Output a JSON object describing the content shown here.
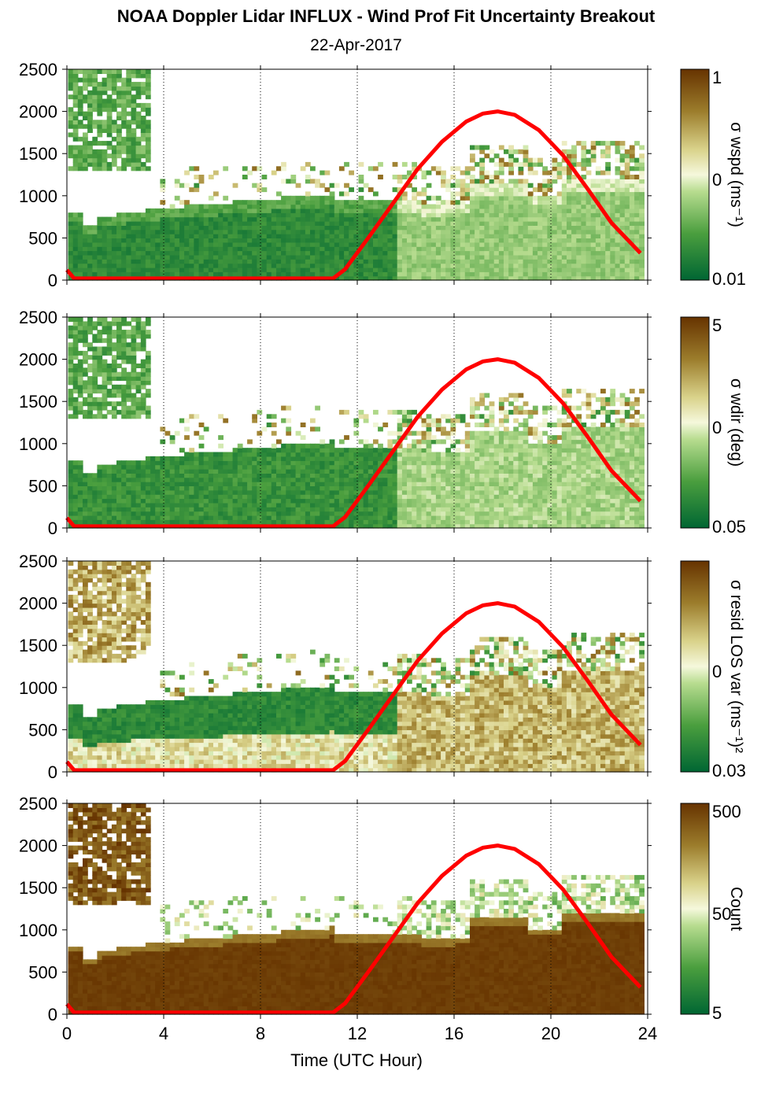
{
  "header": {
    "title": "NOAA Doppler Lidar INFLUX - Wind Prof Fit Uncertainty Breakout",
    "subtitle": "22-Apr-2017"
  },
  "colors": {
    "scale_low": "#006633",
    "scale_mid": "#f5f8dc",
    "scale_high": "#663300",
    "overlay_line": "#ff0000"
  },
  "chart_data": {
    "type": "heatmap",
    "xlabel": "Time (UTC Hour)",
    "xlim": [
      0,
      24
    ],
    "x_ticks": [
      "0",
      "4",
      "8",
      "12",
      "16",
      "20",
      "24"
    ],
    "ylim": [
      0,
      2500
    ],
    "y_ticks": [
      "0",
      "500",
      "1000",
      "1500",
      "2000",
      "2500"
    ],
    "grid": "vertical dotted",
    "overlay_line": {
      "x": [
        0,
        0.3,
        11.0,
        11.5,
        12.5,
        13.5,
        14.5,
        15.5,
        16.5,
        17.2,
        17.8,
        18.5,
        19.5,
        20.5,
        21.5,
        22.5,
        23.7
      ],
      "y": [
        120,
        20,
        20,
        130,
        520,
        920,
        1320,
        1640,
        1880,
        1975,
        2000,
        1960,
        1780,
        1480,
        1090,
        680,
        320
      ]
    },
    "panels": [
      {
        "colorbar_label": "σ wspd (ms⁻¹)",
        "colorbar_ticks": [
          "1",
          "0",
          "0.01"
        ],
        "bias": -0.45
      },
      {
        "colorbar_label": "σ wdir (deg)",
        "colorbar_ticks": [
          "5",
          "0",
          "0.05"
        ],
        "bias": -0.38
      },
      {
        "colorbar_label": "σ resid LOS var (ms⁻¹)²",
        "colorbar_ticks": [
          "",
          "0",
          "0.03"
        ],
        "bias": 0.05
      },
      {
        "colorbar_label": "Count",
        "colorbar_ticks": [
          "500",
          "50",
          "5"
        ],
        "bias": 0.6
      }
    ]
  }
}
